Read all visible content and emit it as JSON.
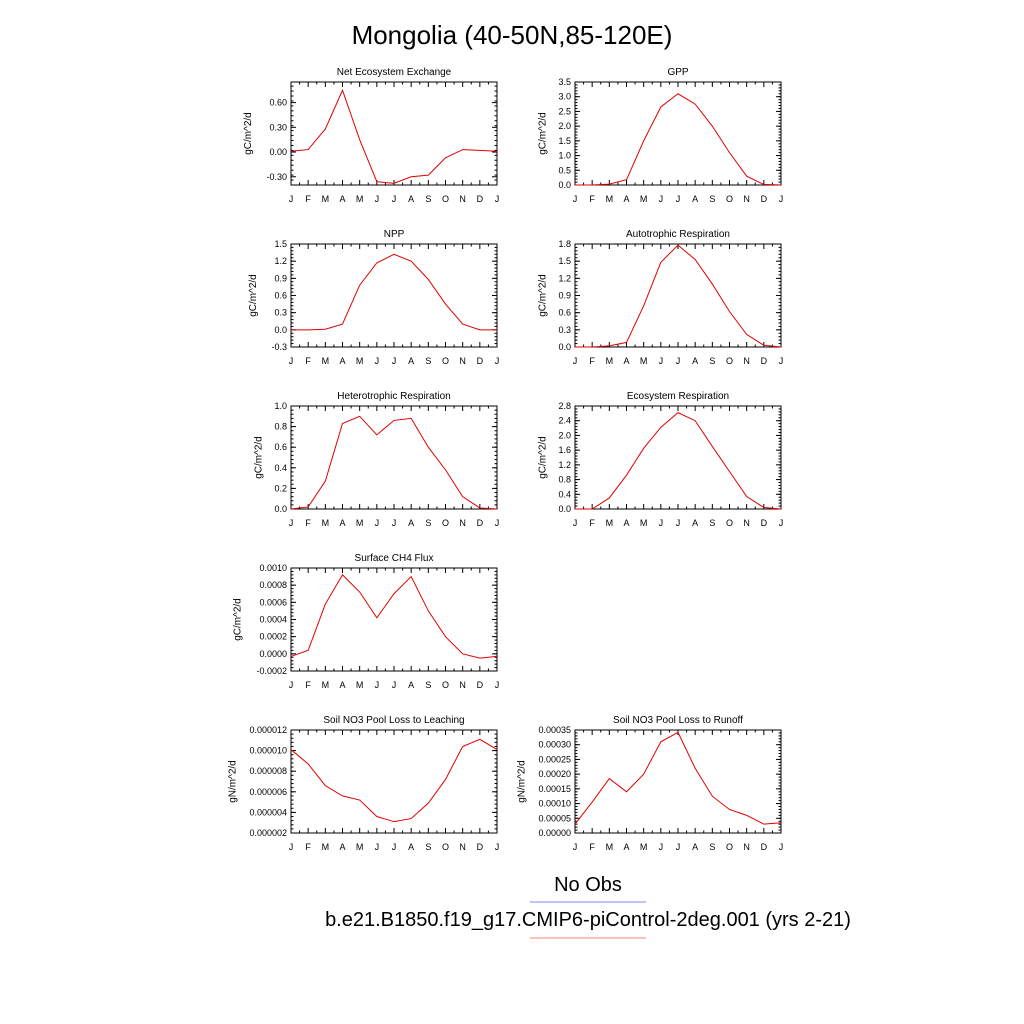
{
  "title": "Mongolia (40-50N,85-120E)",
  "legend": [
    {
      "label": "No Obs",
      "color": "#8080ff"
    },
    {
      "label": "b.e21.B1850.f19_g17.CMIP6-piControl-2deg.001 (yrs 2-21)",
      "color": "#ff8080"
    }
  ],
  "chart_data": [
    {
      "type": "line",
      "title": "Net Ecosystem Exchange",
      "ylabel": "gC/m^2/d",
      "categories": [
        "J",
        "F",
        "M",
        "A",
        "M",
        "J",
        "J",
        "A",
        "S",
        "O",
        "N",
        "D",
        "J"
      ],
      "ylim": [
        -0.4,
        0.85
      ],
      "yticks": [
        -0.3,
        0.0,
        0.3,
        0.6
      ],
      "ytick_labels": [
        "-0.30",
        "0.00",
        "0.30",
        "0.60"
      ],
      "series": [
        {
          "color": "#e00000",
          "values": [
            0.01,
            0.03,
            0.28,
            0.75,
            0.15,
            -0.36,
            -0.38,
            -0.3,
            -0.28,
            -0.07,
            0.03,
            0.02,
            0.01
          ]
        }
      ]
    },
    {
      "type": "line",
      "title": "GPP",
      "ylabel": "gC/m^2/d",
      "categories": [
        "J",
        "F",
        "M",
        "A",
        "M",
        "J",
        "J",
        "A",
        "S",
        "O",
        "N",
        "D",
        "J"
      ],
      "ylim": [
        0,
        3.5
      ],
      "yticks": [
        0,
        0.5,
        1.0,
        1.5,
        2.0,
        2.5,
        3.0,
        3.5
      ],
      "ytick_labels": [
        "0.0",
        "0.5",
        "1.0",
        "1.5",
        "2.0",
        "2.5",
        "3.0",
        "3.5"
      ],
      "series": [
        {
          "color": "#e00000",
          "values": [
            0.0,
            0.0,
            0.03,
            0.18,
            1.5,
            2.65,
            3.1,
            2.75,
            2.0,
            1.1,
            0.3,
            0.02,
            0.0
          ]
        }
      ]
    },
    {
      "type": "line",
      "title": "NPP",
      "ylabel": "gC/m^2/d",
      "categories": [
        "J",
        "F",
        "M",
        "A",
        "M",
        "J",
        "J",
        "A",
        "S",
        "O",
        "N",
        "D",
        "J"
      ],
      "ylim": [
        -0.3,
        1.5
      ],
      "yticks": [
        -0.3,
        0.0,
        0.3,
        0.6,
        0.9,
        1.2,
        1.5
      ],
      "ytick_labels": [
        "-0.3",
        "0.0",
        "0.3",
        "0.6",
        "0.9",
        "1.2",
        "1.5"
      ],
      "series": [
        {
          "color": "#e00000",
          "values": [
            0.0,
            0.0,
            0.01,
            0.1,
            0.78,
            1.17,
            1.32,
            1.2,
            0.88,
            0.45,
            0.1,
            0.0,
            0.0
          ]
        }
      ]
    },
    {
      "type": "line",
      "title": "Autotrophic Respiration",
      "ylabel": "gC/m^2/d",
      "categories": [
        "J",
        "F",
        "M",
        "A",
        "M",
        "J",
        "J",
        "A",
        "S",
        "O",
        "N",
        "D",
        "J"
      ],
      "ylim": [
        0,
        1.8
      ],
      "yticks": [
        0,
        0.3,
        0.6,
        0.9,
        1.2,
        1.5,
        1.8
      ],
      "ytick_labels": [
        "0.0",
        "0.3",
        "0.6",
        "0.9",
        "1.2",
        "1.5",
        "1.8"
      ],
      "series": [
        {
          "color": "#e00000",
          "values": [
            0.0,
            0.0,
            0.02,
            0.08,
            0.72,
            1.48,
            1.78,
            1.53,
            1.1,
            0.62,
            0.22,
            0.03,
            0.0
          ]
        }
      ]
    },
    {
      "type": "line",
      "title": "Heterotrophic Respiration",
      "ylabel": "gC/m^2/d",
      "categories": [
        "J",
        "F",
        "M",
        "A",
        "M",
        "J",
        "J",
        "A",
        "S",
        "O",
        "N",
        "D",
        "J"
      ],
      "ylim": [
        0,
        1.0
      ],
      "yticks": [
        0,
        0.2,
        0.4,
        0.6,
        0.8,
        1.0
      ],
      "ytick_labels": [
        "0.0",
        "0.2",
        "0.4",
        "0.6",
        "0.8",
        "1.0"
      ],
      "series": [
        {
          "color": "#e00000",
          "values": [
            0.0,
            0.02,
            0.27,
            0.83,
            0.9,
            0.72,
            0.86,
            0.88,
            0.6,
            0.38,
            0.12,
            0.01,
            0.0
          ]
        }
      ]
    },
    {
      "type": "line",
      "title": "Ecosystem Respiration",
      "ylabel": "gC/m^2/d",
      "categories": [
        "J",
        "F",
        "M",
        "A",
        "M",
        "J",
        "J",
        "A",
        "S",
        "O",
        "N",
        "D",
        "J"
      ],
      "ylim": [
        0,
        2.8
      ],
      "yticks": [
        0,
        0.4,
        0.8,
        1.2,
        1.6,
        2.0,
        2.4,
        2.8
      ],
      "ytick_labels": [
        "0.0",
        "0.4",
        "0.8",
        "1.2",
        "1.6",
        "2.0",
        "2.4",
        "2.8"
      ],
      "series": [
        {
          "color": "#e00000",
          "values": [
            0.0,
            0.0,
            0.3,
            0.92,
            1.65,
            2.22,
            2.62,
            2.4,
            1.7,
            1.02,
            0.34,
            0.04,
            0.0
          ]
        }
      ]
    },
    {
      "type": "line",
      "title": "Surface CH4 Flux",
      "ylabel": "gC/m^2/d",
      "categories": [
        "J",
        "F",
        "M",
        "A",
        "M",
        "J",
        "J",
        "A",
        "S",
        "O",
        "N",
        "D",
        "J"
      ],
      "ylim": [
        -0.0002,
        0.001
      ],
      "yticks": [
        -0.0002,
        0.0,
        0.0002,
        0.0004,
        0.0006,
        0.0008,
        0.001
      ],
      "ytick_labels": [
        "-0.0002",
        "0.0000",
        "0.0002",
        "0.0004",
        "0.0006",
        "0.0008",
        "0.0010"
      ],
      "series": [
        {
          "color": "#e00000",
          "values": [
            -3e-05,
            4e-05,
            0.00058,
            0.00092,
            0.00072,
            0.00042,
            0.0007,
            0.0009,
            0.0005,
            0.0002,
            0.0,
            -5e-05,
            -3e-05
          ]
        }
      ]
    },
    null,
    {
      "type": "line",
      "title": "Soil NO3 Pool Loss to Leaching",
      "ylabel": "gN/m^2/d",
      "categories": [
        "J",
        "F",
        "M",
        "A",
        "M",
        "J",
        "J",
        "A",
        "S",
        "O",
        "N",
        "D",
        "J"
      ],
      "ylim": [
        2e-06,
        1.2e-05
      ],
      "yticks": [
        2e-06,
        4e-06,
        6e-06,
        8e-06,
        1e-05,
        1.2e-05
      ],
      "ytick_labels": [
        "0.000002",
        "0.000004",
        "0.000006",
        "0.000008",
        "0.000010",
        "0.000012"
      ],
      "series": [
        {
          "color": "#e00000",
          "values": [
            1.01e-05,
            8.7e-06,
            6.6e-06,
            5.6e-06,
            5.2e-06,
            3.6e-06,
            3.1e-06,
            3.4e-06,
            4.9e-06,
            7.2e-06,
            1.04e-05,
            1.11e-05,
            1.01e-05
          ]
        }
      ]
    },
    {
      "type": "line",
      "title": "Soil NO3 Pool Loss to Runoff",
      "ylabel": "gN/m^2/d",
      "categories": [
        "J",
        "F",
        "M",
        "A",
        "M",
        "J",
        "J",
        "A",
        "S",
        "O",
        "N",
        "D",
        "J"
      ],
      "ylim": [
        0,
        0.00035
      ],
      "yticks": [
        0,
        5e-05,
        0.0001,
        0.00015,
        0.0002,
        0.00025,
        0.0003,
        0.00035
      ],
      "ytick_labels": [
        "0.00000",
        "0.00005",
        "0.00010",
        "0.00015",
        "0.00020",
        "0.00025",
        "0.00030",
        "0.00035"
      ],
      "series": [
        {
          "color": "#e00000",
          "values": [
            3e-05,
            0.000105,
            0.000185,
            0.00014,
            0.0002,
            0.00031,
            0.000342,
            0.00022,
            0.000125,
            8e-05,
            6e-05,
            3e-05,
            3.5e-05
          ]
        }
      ]
    }
  ]
}
